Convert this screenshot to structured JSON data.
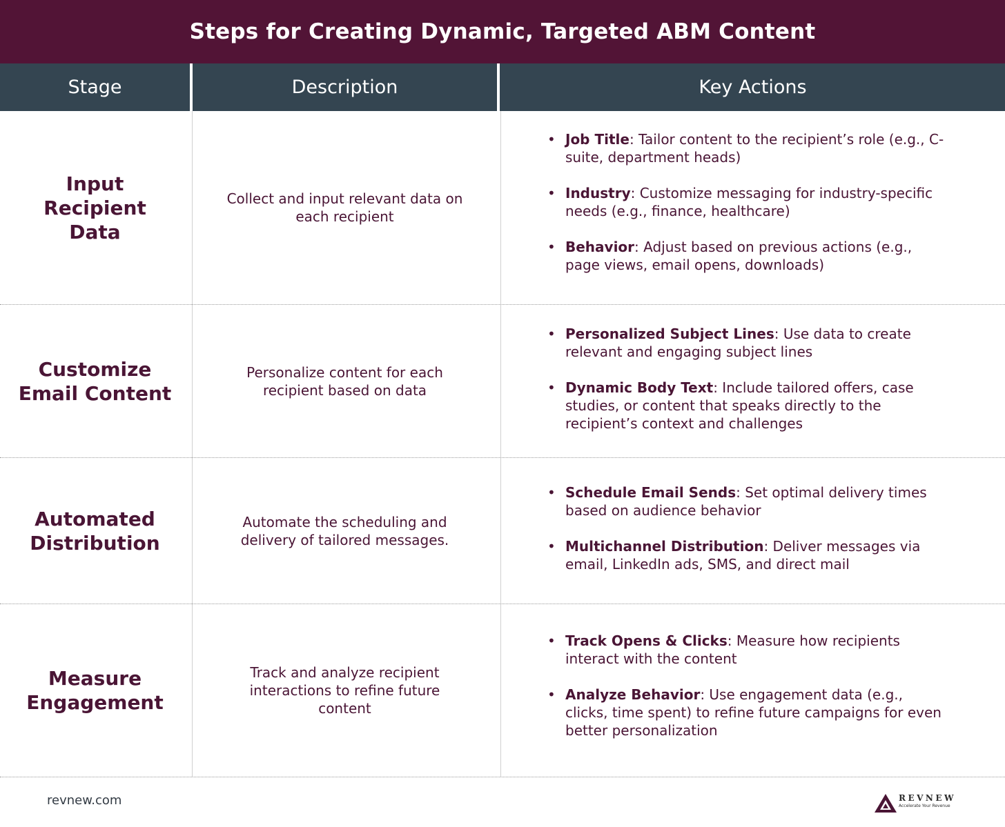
{
  "title": "Steps for Creating Dynamic, Targeted ABM Content",
  "headers": {
    "stage": "Stage",
    "description": "Description",
    "key_actions": "Key Actions"
  },
  "rows": [
    {
      "stage_line1": "Input",
      "stage_line2": "Recipient Data",
      "description": "Collect and input relevant data on each recipient",
      "actions": [
        {
          "bold": "Job Title",
          "text": ": Tailor content to the recipient’s role (e.g., C-suite, department heads)"
        },
        {
          "bold": "Industry",
          "text": ": Customize messaging for industry-specific needs (e.g., finance, healthcare)"
        },
        {
          "bold": "Behavior",
          "text": ": Adjust based on previous actions (e.g., page views, email opens, downloads)"
        }
      ]
    },
    {
      "stage_line1": "Customize",
      "stage_line2": "Email Content",
      "description": "Personalize content for each recipient based on data",
      "actions": [
        {
          "bold": "Personalized Subject Lines",
          "text": ": Use data to create relevant and engaging subject lines"
        },
        {
          "bold": "Dynamic Body Text",
          "text": ": Include tailored offers, case studies, or content that speaks directly to the recipient’s context and challenges"
        }
      ]
    },
    {
      "stage_line1": "Automated",
      "stage_line2": "Distribution",
      "description": "Automate the scheduling and delivery of tailored messages.",
      "actions": [
        {
          "bold": "Schedule Email Sends",
          "text": ": Set optimal delivery times based on audience behavior"
        },
        {
          "bold": "Multichannel Distribution",
          "text": ": Deliver messages via email, LinkedIn ads, SMS, and direct mail"
        }
      ]
    },
    {
      "stage_line1": "Measure",
      "stage_line2": "Engagement",
      "description": "Track and analyze recipient interactions to refine future content",
      "actions": [
        {
          "bold": "Track Opens & Clicks",
          "text": ": Measure how recipients interact with the content"
        },
        {
          "bold": "Analyze Behavior",
          "text": ": Use engagement data (e.g., clicks, time spent) to refine future campaigns for even better personalization"
        }
      ]
    }
  ],
  "footer": {
    "url": "revnew.com",
    "logo_word": "REVNEW",
    "logo_tagline": "Accelerate Your Revenue",
    "logo_icon": "revnew-logo-icon"
  },
  "colors": {
    "title_bg": "#521436",
    "header_bg": "#344551",
    "text": "#4a1535"
  }
}
